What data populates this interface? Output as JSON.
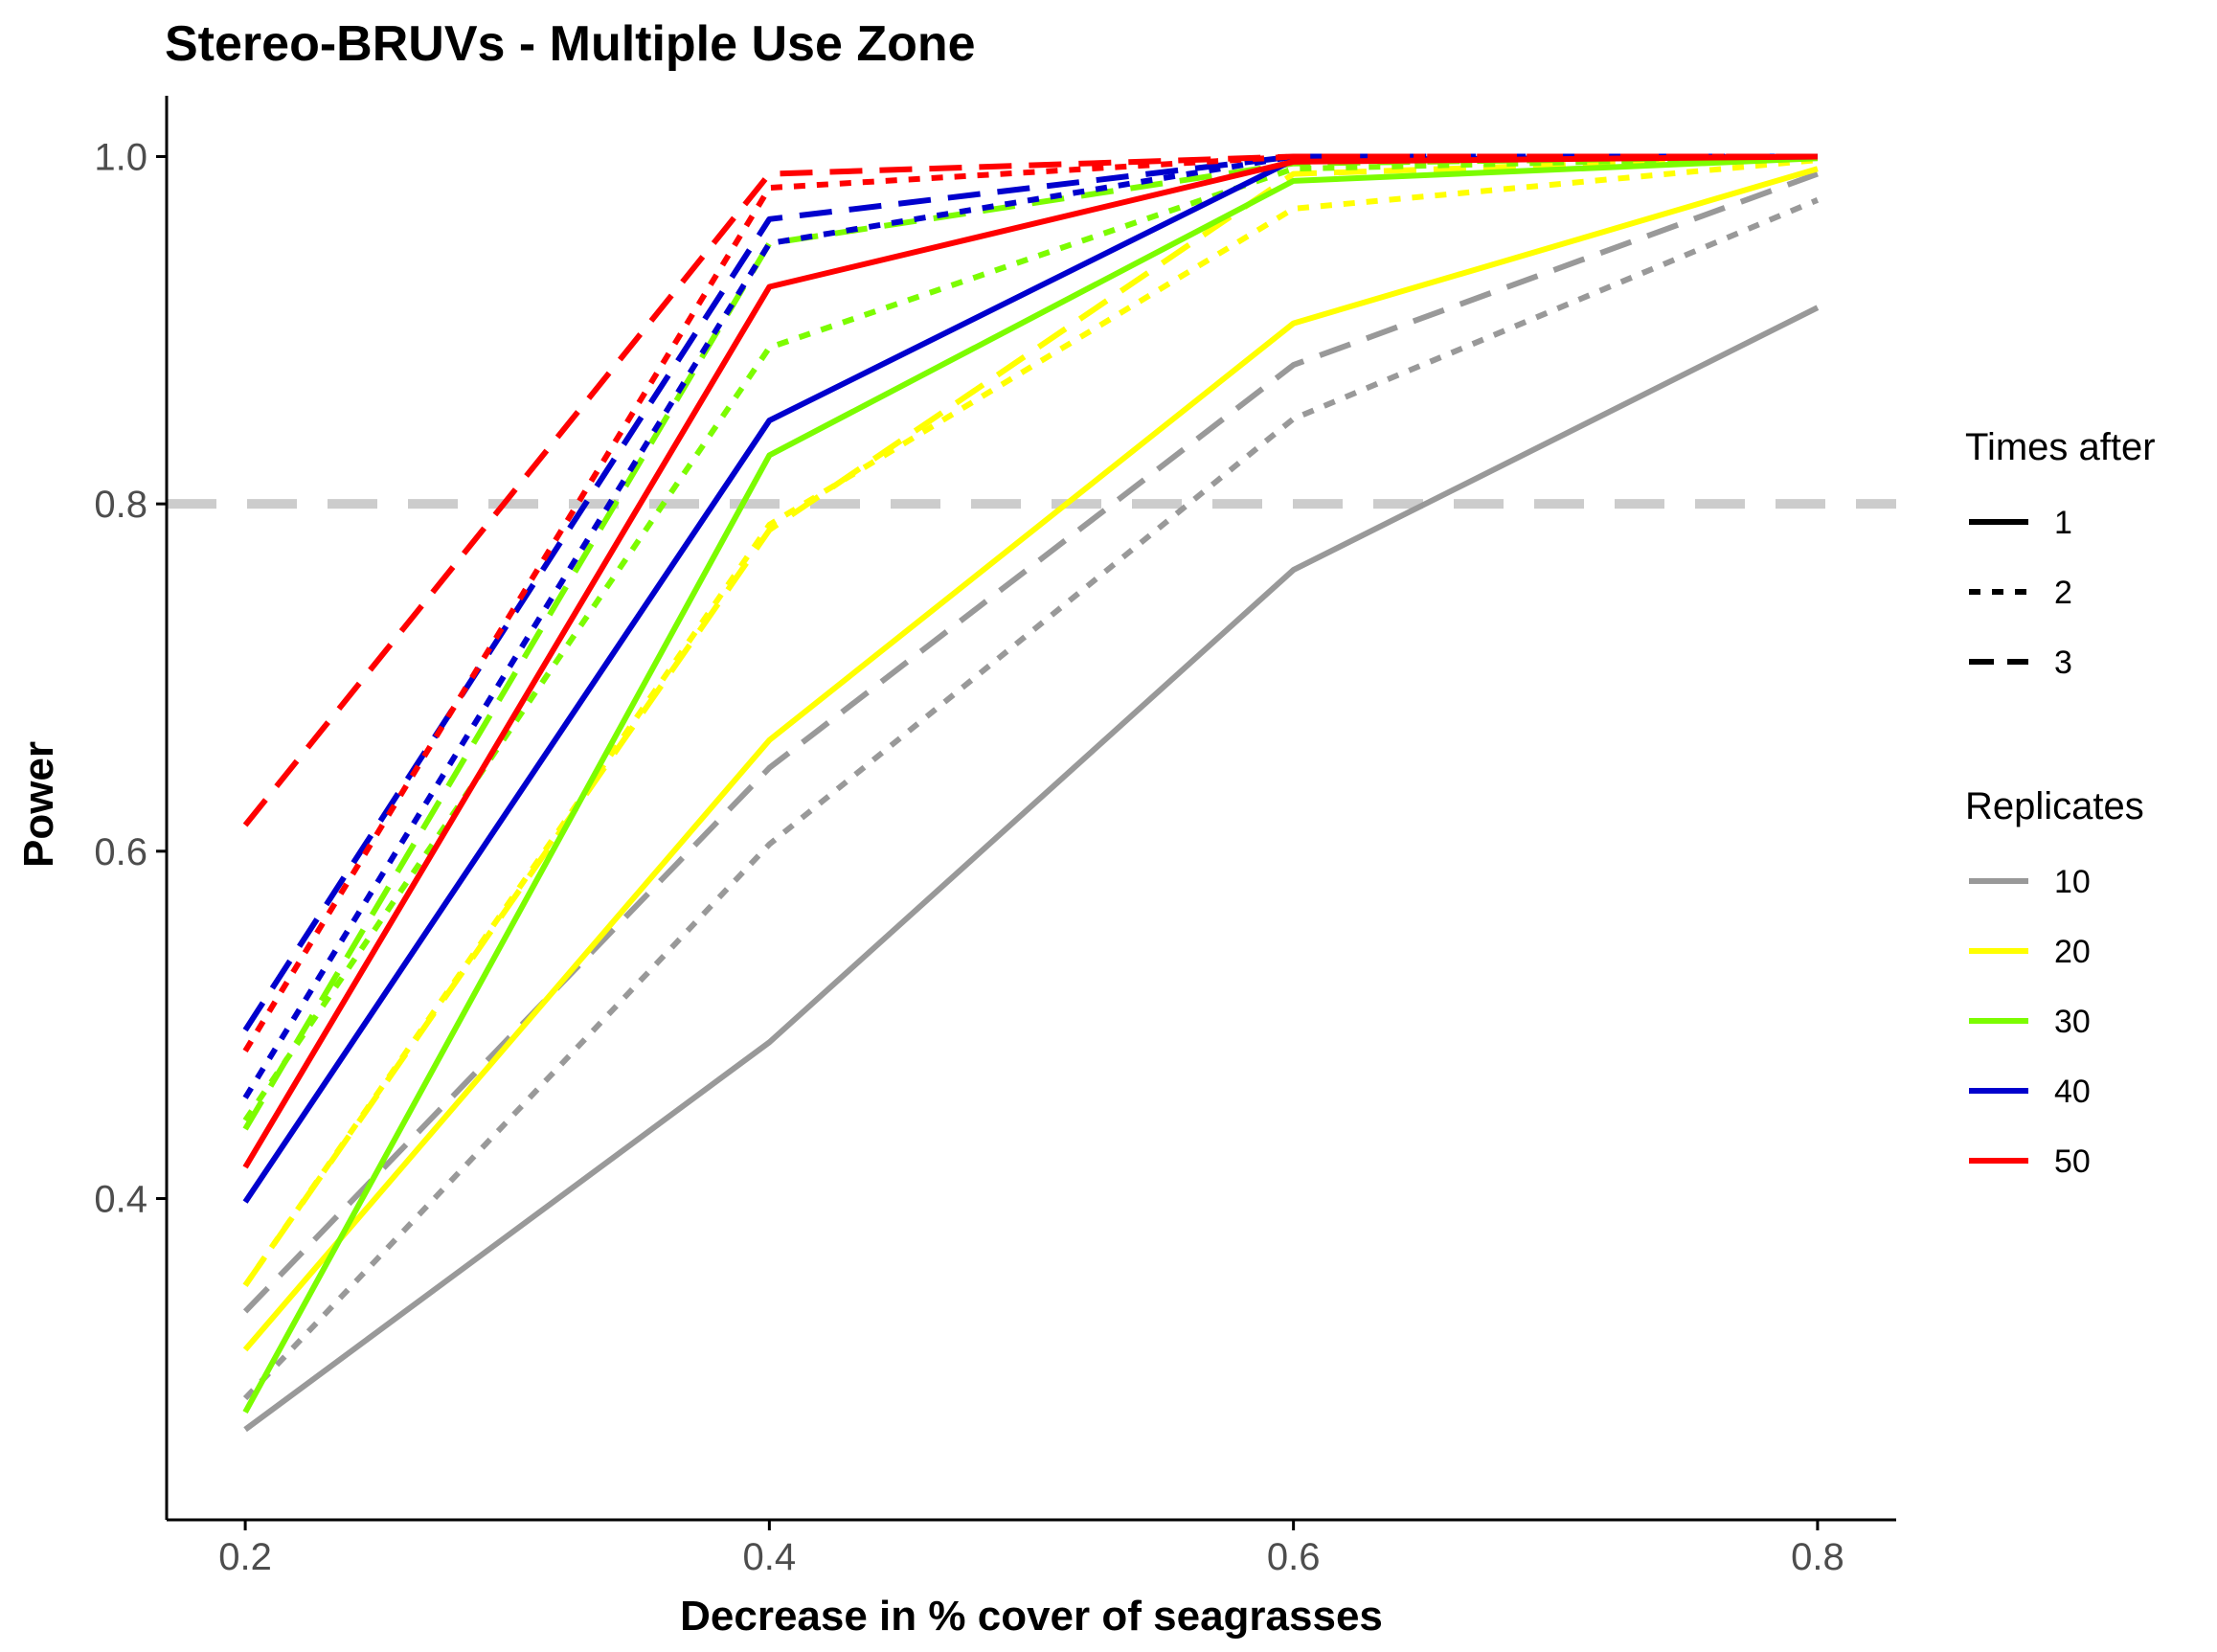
{
  "chart_data": {
    "type": "line",
    "title": "Stereo-BRUVs - Multiple Use Zone",
    "xlabel": "Decrease in % cover of seagrasses",
    "ylabel": "Power",
    "x": [
      0.2,
      0.4,
      0.6,
      0.8
    ],
    "xlim": [
      0.17,
      0.83
    ],
    "ylim": [
      0.215,
      1.035
    ],
    "x_ticks": [
      "0.2",
      "0.4",
      "0.6",
      "0.8"
    ],
    "y_ticks": [
      "0.4",
      "0.6",
      "0.8",
      "1.0"
    ],
    "grid": false,
    "reference_line": {
      "y": 0.8,
      "style": "dashed",
      "color": "#cccccc"
    },
    "legend_position": "right",
    "legend_linetype": {
      "title": "Times after",
      "entries": [
        {
          "label": "1",
          "style": "solid"
        },
        {
          "label": "2",
          "style": "dotted"
        },
        {
          "label": "3",
          "style": "dashed"
        }
      ]
    },
    "legend_color": {
      "title": "Replicates",
      "entries": [
        {
          "label": "10",
          "color": "#999999"
        },
        {
          "label": "20",
          "color": "#ffff00"
        },
        {
          "label": "30",
          "color": "#7cfc00"
        },
        {
          "label": "40",
          "color": "#0000cd"
        },
        {
          "label": "50",
          "color": "#ff0000"
        }
      ]
    },
    "series": [
      {
        "replicates": "10",
        "times_after": "1",
        "style": "solid",
        "color": "#999999",
        "values": [
          0.267,
          0.49,
          0.762,
          0.913
        ]
      },
      {
        "replicates": "10",
        "times_after": "2",
        "style": "dotted",
        "color": "#999999",
        "values": [
          0.285,
          0.604,
          0.849,
          0.975
        ]
      },
      {
        "replicates": "10",
        "times_after": "3",
        "style": "dashed",
        "color": "#999999",
        "values": [
          0.335,
          0.648,
          0.88,
          0.99
        ]
      },
      {
        "replicates": "20",
        "times_after": "1",
        "style": "solid",
        "color": "#ffff00",
        "values": [
          0.313,
          0.664,
          0.904,
          0.993
        ]
      },
      {
        "replicates": "20",
        "times_after": "2",
        "style": "dotted",
        "color": "#ffff00",
        "values": [
          0.35,
          0.788,
          0.97,
          0.998
        ]
      },
      {
        "replicates": "20",
        "times_after": "3",
        "style": "dashed",
        "color": "#ffff00",
        "values": [
          0.35,
          0.785,
          0.99,
          1.0
        ]
      },
      {
        "replicates": "30",
        "times_after": "1",
        "style": "solid",
        "color": "#7cfc00",
        "values": [
          0.277,
          0.828,
          0.986,
          0.999
        ]
      },
      {
        "replicates": "30",
        "times_after": "2",
        "style": "dotted",
        "color": "#7cfc00",
        "values": [
          0.445,
          0.89,
          0.993,
          1.0
        ]
      },
      {
        "replicates": "30",
        "times_after": "3",
        "style": "dashed",
        "color": "#7cfc00",
        "values": [
          0.44,
          0.95,
          0.996,
          1.0
        ]
      },
      {
        "replicates": "40",
        "times_after": "1",
        "style": "solid",
        "color": "#0000cd",
        "values": [
          0.398,
          0.848,
          0.998,
          1.0
        ]
      },
      {
        "replicates": "40",
        "times_after": "2",
        "style": "dotted",
        "color": "#0000cd",
        "values": [
          0.458,
          0.95,
          1.0,
          1.0
        ]
      },
      {
        "replicates": "40",
        "times_after": "3",
        "style": "dashed",
        "color": "#0000cd",
        "values": [
          0.497,
          0.964,
          1.0,
          1.0
        ]
      },
      {
        "replicates": "50",
        "times_after": "1",
        "style": "solid",
        "color": "#ff0000",
        "values": [
          0.418,
          0.925,
          0.997,
          1.0
        ]
      },
      {
        "replicates": "50",
        "times_after": "2",
        "style": "dotted",
        "color": "#ff0000",
        "values": [
          0.485,
          0.982,
          1.0,
          1.0
        ]
      },
      {
        "replicates": "50",
        "times_after": "3",
        "style": "dashed",
        "color": "#ff0000",
        "values": [
          0.615,
          0.99,
          1.0,
          1.0
        ]
      }
    ]
  }
}
